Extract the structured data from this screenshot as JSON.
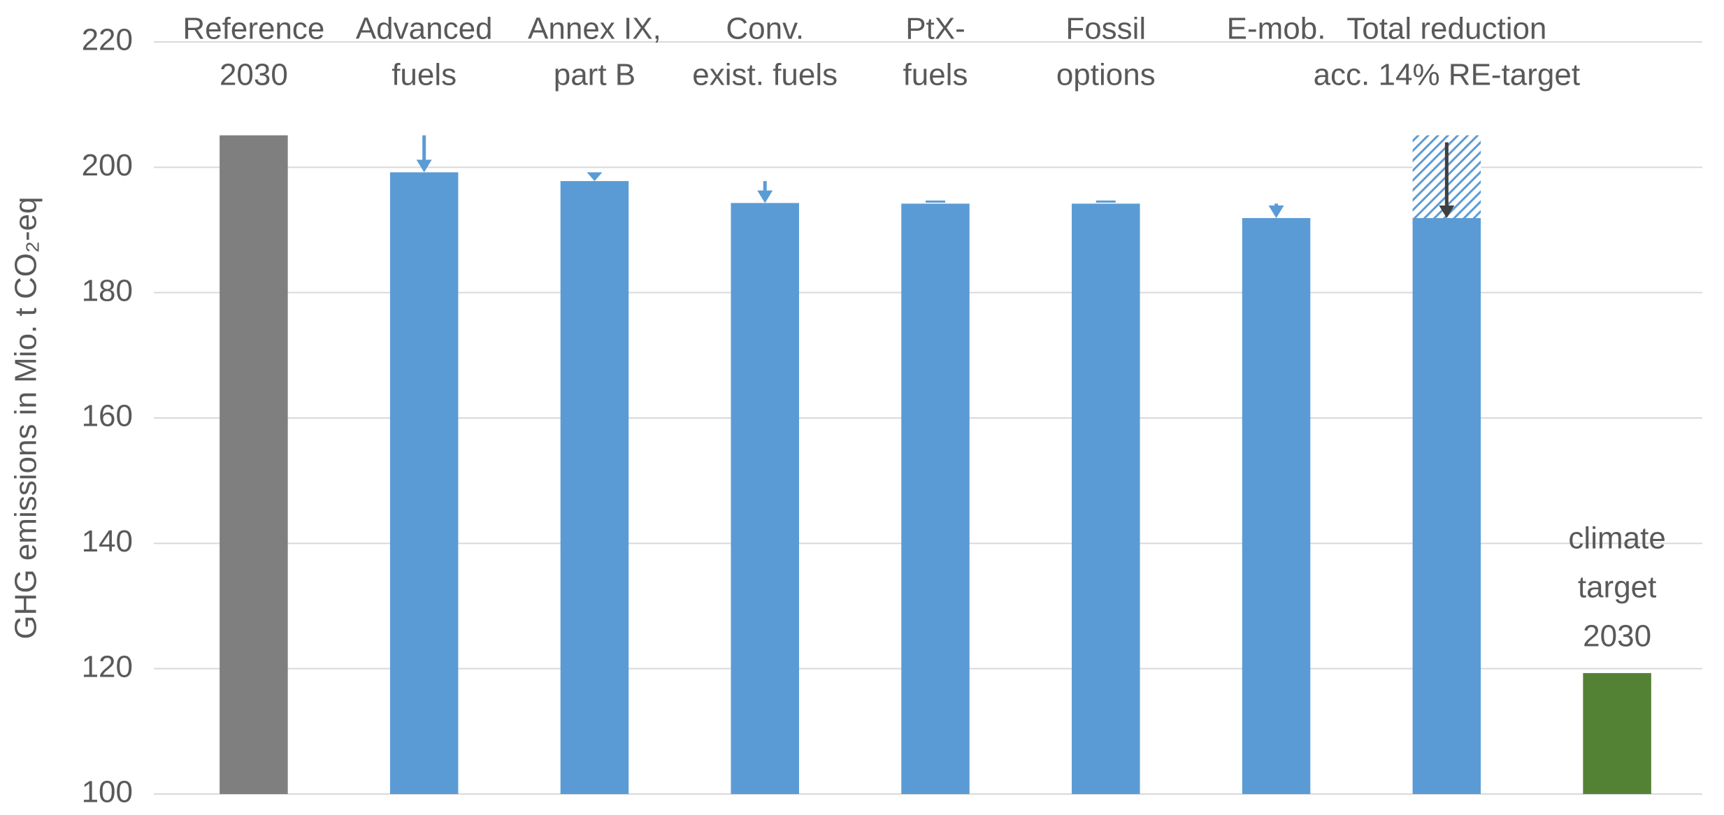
{
  "chart_data": {
    "type": "bar",
    "y_label": "GHG emissions in Mio. t CO₂-eq",
    "categories": [
      [
        "Reference",
        "2030"
      ],
      [
        "Advanced",
        "fuels"
      ],
      [
        "Annex IX,",
        "part  B"
      ],
      [
        "Conv.",
        "exist. fuels"
      ],
      [
        "PtX-",
        "fuels"
      ],
      [
        "Fossil",
        "options"
      ],
      [
        "E-mob."
      ],
      [
        "Total reduction",
        "acc. 14% RE-target"
      ],
      [
        "climate",
        "target",
        "2030"
      ]
    ],
    "values": [
      205.1,
      199.2,
      197.8,
      194.3,
      194.2,
      194.2,
      191.9,
      191.9,
      119.3
    ],
    "colors": [
      "#7f7f7f",
      "#5b9bd5",
      "#5b9bd5",
      "#5b9bd5",
      "#5b9bd5",
      "#5b9bd5",
      "#5b9bd5",
      "#5b9bd5",
      "#548235"
    ],
    "ylim": [
      100,
      220
    ],
    "yticks": [
      100,
      120,
      140,
      160,
      180,
      200,
      220
    ],
    "grid": true
  }
}
